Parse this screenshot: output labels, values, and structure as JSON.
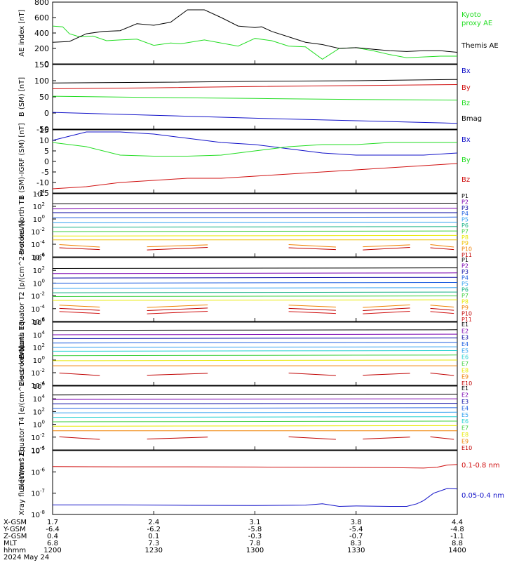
{
  "date_label": "2024 May 24",
  "colors": {
    "black": "#000000",
    "green": "#22dd22",
    "blue": "#1010c8",
    "red": "#d01010",
    "purple": "#7a00b0",
    "navy": "#0000a0",
    "royal": "#2060e0",
    "sky": "#30a0f0",
    "cyan": "#20d0d0",
    "teal": "#10b080",
    "lime": "#40d040",
    "yellow": "#e8e800",
    "gold": "#f0c000",
    "orange": "#f08000",
    "darkred": "#c00000"
  },
  "x_axis": {
    "tick_minutes": [
      0,
      30,
      60,
      90,
      120
    ],
    "row_labels": [
      "X-GSM",
      "Y-GSM",
      "Z-GSM",
      "MLT",
      "hhmm"
    ],
    "columns": [
      [
        "1.7",
        "-6.4",
        "0.4",
        "6.8",
        "1200"
      ],
      [
        "2.4",
        "-6.2",
        "0.1",
        "7.3",
        "1230"
      ],
      [
        "3.1",
        "-5.8",
        "-0.3",
        "7.8",
        "1300"
      ],
      [
        "3.8",
        "-5.4",
        "-0.7",
        "8.3",
        "1330"
      ],
      [
        "4.4",
        "-4.8",
        "-1.1",
        "8.8",
        "1400"
      ]
    ]
  },
  "chart_data": [
    {
      "type": "line",
      "ylabel": "AE index [nT]",
      "ylim": [
        0,
        800
      ],
      "yticks": [
        "800",
        "600",
        "400",
        "200",
        "0"
      ],
      "log": false,
      "legend": [
        "Kyoto proxy AE",
        "Themis AE"
      ],
      "series": [
        {
          "name": "Kyoto proxy AE",
          "color": "green",
          "x": [
            0,
            3,
            5,
            8,
            12,
            16,
            20,
            25,
            30,
            35,
            38,
            45,
            55,
            60,
            65,
            70,
            75,
            80,
            85,
            90,
            95,
            100,
            105,
            110,
            115,
            120
          ],
          "y": [
            490,
            480,
            390,
            350,
            360,
            300,
            310,
            320,
            240,
            270,
            260,
            310,
            230,
            330,
            300,
            230,
            220,
            60,
            200,
            210,
            170,
            120,
            80,
            90,
            100,
            100
          ]
        },
        {
          "name": "Themis AE",
          "color": "black",
          "x": [
            0,
            5,
            10,
            15,
            20,
            25,
            30,
            35,
            40,
            45,
            50,
            55,
            60,
            62,
            65,
            70,
            75,
            80,
            85,
            90,
            95,
            100,
            105,
            110,
            115,
            120
          ],
          "y": [
            280,
            290,
            390,
            420,
            430,
            520,
            500,
            540,
            700,
            700,
            600,
            490,
            470,
            480,
            420,
            350,
            280,
            250,
            200,
            210,
            190,
            170,
            160,
            170,
            170,
            150
          ]
        }
      ]
    },
    {
      "type": "line",
      "ylabel": "B (SM) [nT]",
      "ylim": [
        -50,
        150
      ],
      "yticks": [
        "150",
        "100",
        "50",
        "0",
        "-50"
      ],
      "log": false,
      "legend": [
        "Bx",
        "By",
        "Bz",
        "Bmag"
      ],
      "series": [
        {
          "name": "Bmag",
          "color": "black",
          "x": [
            0,
            30,
            60,
            90,
            120
          ],
          "y": [
            93,
            95,
            98,
            100,
            104
          ]
        },
        {
          "name": "By",
          "color": "red",
          "x": [
            0,
            30,
            60,
            90,
            120
          ],
          "y": [
            75,
            78,
            82,
            85,
            88
          ]
        },
        {
          "name": "Bz",
          "color": "green",
          "x": [
            0,
            30,
            60,
            90,
            120
          ],
          "y": [
            52,
            48,
            45,
            42,
            40
          ]
        },
        {
          "name": "Bx",
          "color": "blue",
          "x": [
            0,
            30,
            60,
            90,
            120
          ],
          "y": [
            2,
            -7,
            -16,
            -24,
            -32
          ]
        }
      ]
    },
    {
      "type": "line",
      "ylabel": "B (SM)-IGRF (SM) [nT]",
      "ylim": [
        -15,
        15
      ],
      "yticks": [
        "15",
        "10",
        "5",
        "0",
        "-5",
        "-10",
        "-15"
      ],
      "log": false,
      "legend": [
        "Bx",
        "By",
        "Bz"
      ],
      "series": [
        {
          "name": "Bx",
          "color": "blue",
          "x": [
            0,
            10,
            20,
            30,
            40,
            50,
            60,
            70,
            80,
            90,
            100,
            110,
            120
          ],
          "y": [
            10,
            14,
            14,
            13,
            11,
            9,
            8,
            6,
            4,
            3,
            3,
            3,
            4
          ]
        },
        {
          "name": "By",
          "color": "green",
          "x": [
            0,
            10,
            20,
            30,
            40,
            50,
            60,
            70,
            80,
            90,
            100,
            110,
            120
          ],
          "y": [
            9,
            7,
            3,
            2.5,
            2.5,
            3,
            5,
            7,
            8,
            8,
            9,
            9,
            9
          ]
        },
        {
          "name": "Bz",
          "color": "red",
          "x": [
            0,
            10,
            20,
            30,
            40,
            50,
            60,
            70,
            80,
            90,
            100,
            110,
            120
          ],
          "y": [
            -13,
            -12,
            -10,
            -9,
            -8,
            -8,
            -7,
            -6,
            -5,
            -4,
            -3,
            -2,
            -1
          ]
        }
      ]
    },
    {
      "type": "line",
      "ylabel": "Protons North T1",
      "ylim": [
        -6,
        4
      ],
      "yticks": [
        "10^4",
        "10^2",
        "10^0",
        "10^-2",
        "10^-4",
        "10^-6"
      ],
      "log": true,
      "legend": [
        "P1",
        "P2",
        "P3",
        "P4",
        "P5",
        "P6",
        "P7",
        "P8",
        "P9",
        "P10",
        "P11"
      ],
      "series": [
        {
          "name": "P1",
          "color": "black",
          "y": [
            2.4,
            2.5
          ]
        },
        {
          "name": "P2",
          "color": "purple",
          "y": [
            1.6,
            1.7
          ]
        },
        {
          "name": "P3",
          "color": "navy",
          "y": [
            1.0,
            1.0
          ]
        },
        {
          "name": "P4",
          "color": "royal",
          "y": [
            0.2,
            0.3
          ]
        },
        {
          "name": "P5",
          "color": "sky",
          "y": [
            -0.6,
            -0.5
          ]
        },
        {
          "name": "P6",
          "color": "teal",
          "y": [
            -1.3,
            -1.2
          ]
        },
        {
          "name": "P7",
          "color": "lime",
          "y": [
            -2.0,
            -1.9
          ]
        },
        {
          "name": "P8",
          "color": "yellow",
          "y": [
            -2.7,
            -2.6
          ]
        },
        {
          "name": "P9",
          "color": "gold",
          "y": [
            -3.3,
            -3.3
          ]
        },
        {
          "name": "P10",
          "color": "orange",
          "y": [
            -4.2,
            -4.3
          ],
          "broken": true
        },
        {
          "name": "P11",
          "color": "darkred",
          "y": [
            -4.7,
            -4.7
          ],
          "broken": true
        }
      ]
    },
    {
      "type": "line",
      "ylabel": "Protons Equator T2 [p/(cm^2-s-sr-keV)]",
      "ylim": [
        -6,
        4
      ],
      "yticks": [
        "10^4",
        "10^2",
        "10^0",
        "10^-2",
        "10^-4",
        "10^-6"
      ],
      "log": true,
      "legend": [
        "P1",
        "P2",
        "P3",
        "P4",
        "P5",
        "P6",
        "P7",
        "P8",
        "P9",
        "P10",
        "P11"
      ],
      "series": [
        {
          "name": "P1",
          "color": "black",
          "y": [
            2.3,
            2.4
          ]
        },
        {
          "name": "P2",
          "color": "purple",
          "y": [
            1.5,
            1.6
          ]
        },
        {
          "name": "P3",
          "color": "navy",
          "y": [
            0.8,
            0.9
          ]
        },
        {
          "name": "P4",
          "color": "royal",
          "y": [
            0.0,
            0.1
          ]
        },
        {
          "name": "P5",
          "color": "sky",
          "y": [
            -0.8,
            -0.7
          ]
        },
        {
          "name": "P6",
          "color": "teal",
          "y": [
            -1.5,
            -1.4
          ]
        },
        {
          "name": "P7",
          "color": "lime",
          "y": [
            -2.1,
            -2.0
          ]
        },
        {
          "name": "P8",
          "color": "yellow",
          "y": [
            -2.7,
            -2.6
          ]
        },
        {
          "name": "P9",
          "color": "orange",
          "y": [
            -3.6,
            -3.6
          ],
          "broken": true
        },
        {
          "name": "P10",
          "color": "darkred",
          "y": [
            -4.1,
            -4.1
          ],
          "broken": true
        },
        {
          "name": "P11",
          "color": "red",
          "y": [
            -4.6,
            -4.6
          ],
          "broken": true
        }
      ]
    },
    {
      "type": "line",
      "ylabel": "Electrons North T3",
      "ylim": [
        -4,
        6
      ],
      "yticks": [
        "10^6",
        "10^4",
        "10^2",
        "10^0",
        "10^-2",
        "10^-4"
      ],
      "log": true,
      "legend": [
        "E1",
        "E2",
        "E3",
        "E4",
        "E5",
        "E6",
        "E7",
        "E8",
        "E9",
        "E10"
      ],
      "series": [
        {
          "name": "E1",
          "color": "black",
          "y": [
            4.7,
            4.8
          ]
        },
        {
          "name": "E2",
          "color": "purple",
          "y": [
            4.0,
            4.1
          ]
        },
        {
          "name": "E3",
          "color": "navy",
          "y": [
            3.4,
            3.5
          ]
        },
        {
          "name": "E4",
          "color": "royal",
          "y": [
            2.7,
            2.8
          ]
        },
        {
          "name": "E5",
          "color": "sky",
          "y": [
            2.0,
            2.1
          ]
        },
        {
          "name": "E6",
          "color": "cyan",
          "y": [
            1.4,
            1.5
          ]
        },
        {
          "name": "E7",
          "color": "lime",
          "y": [
            0.7,
            0.8
          ]
        },
        {
          "name": "E8",
          "color": "yellow",
          "y": [
            -0.1,
            0.0
          ]
        },
        {
          "name": "E9",
          "color": "orange",
          "y": [
            -0.9,
            -0.9
          ]
        },
        {
          "name": "E10",
          "color": "darkred",
          "y": [
            -2.2,
            -2.3
          ],
          "broken": true
        }
      ]
    },
    {
      "type": "line",
      "ylabel": "Electrons Equator T4 [e/(cm^2-s-sr-keV)]",
      "ylim": [
        -4,
        6
      ],
      "yticks": [
        "10^6",
        "10^4",
        "10^2",
        "10^0",
        "10^-2",
        "10^-4"
      ],
      "log": true,
      "legend": [
        "E1",
        "E2",
        "E3",
        "E4",
        "E5",
        "E6",
        "E7",
        "E8",
        "E9",
        "E10"
      ],
      "series": [
        {
          "name": "E1",
          "color": "black",
          "y": [
            4.6,
            4.7
          ]
        },
        {
          "name": "E2",
          "color": "purple",
          "y": [
            3.9,
            4.0
          ]
        },
        {
          "name": "E3",
          "color": "navy",
          "y": [
            3.2,
            3.3
          ]
        },
        {
          "name": "E4",
          "color": "royal",
          "y": [
            2.5,
            2.6
          ]
        },
        {
          "name": "E5",
          "color": "sky",
          "y": [
            1.8,
            1.9
          ]
        },
        {
          "name": "E6",
          "color": "cyan",
          "y": [
            1.1,
            1.2
          ]
        },
        {
          "name": "E7",
          "color": "lime",
          "y": [
            0.4,
            0.5
          ]
        },
        {
          "name": "E8",
          "color": "yellow",
          "y": [
            -0.3,
            -0.2
          ]
        },
        {
          "name": "E9",
          "color": "orange",
          "y": [
            -1.0,
            -1.0
          ]
        },
        {
          "name": "E10",
          "color": "darkred",
          "y": [
            -2.1,
            -2.2
          ],
          "broken": true
        }
      ]
    },
    {
      "type": "line",
      "ylabel": "Xray flux [W/m^2]",
      "ylim": [
        -8,
        -5
      ],
      "yticks": [
        "10^-5",
        "10^-6",
        "10^-7",
        "10^-8"
      ],
      "log": true,
      "legend": [
        "0.1-0.8 nm",
        "0.05-0.4 nm"
      ],
      "series": [
        {
          "name": "0.1-0.8 nm",
          "color": "red",
          "x": [
            0,
            20,
            40,
            60,
            80,
            100,
            110,
            114,
            117,
            120
          ],
          "y": [
            -5.75,
            -5.76,
            -5.76,
            -5.77,
            -5.78,
            -5.8,
            -5.82,
            -5.78,
            -5.68,
            -5.65
          ]
        },
        {
          "name": "0.05-0.4 nm",
          "color": "blue",
          "x": [
            0,
            20,
            40,
            60,
            75,
            80,
            85,
            90,
            100,
            105,
            108,
            110,
            113,
            117,
            120
          ],
          "y": [
            -7.55,
            -7.55,
            -7.57,
            -7.58,
            -7.56,
            -7.5,
            -7.62,
            -7.6,
            -7.62,
            -7.62,
            -7.5,
            -7.35,
            -7.0,
            -6.78,
            -6.8
          ]
        }
      ]
    }
  ]
}
